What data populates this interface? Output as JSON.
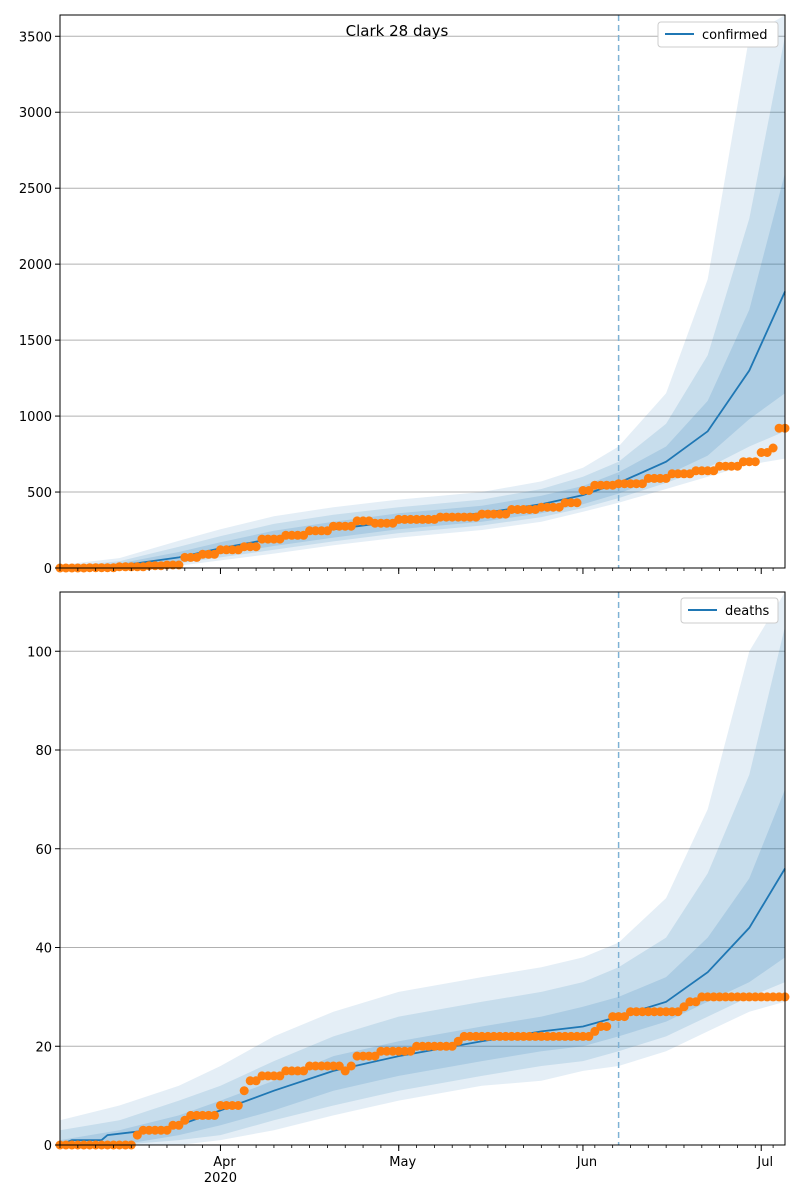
{
  "figure_title": "Clark 28 days",
  "colors": {
    "model": "#1f77b4",
    "observed": "#ff7f0e",
    "band": "#1f77b4",
    "grid": "#b0b0b0",
    "forecast_line": "#7fb2d5"
  },
  "x_axis": {
    "start_date": "2020-03-05",
    "end_date": "2020-07-05",
    "ticks": [
      {
        "date": "2020-04-01",
        "label": "Apr",
        "sublabel": "2020"
      },
      {
        "date": "2020-05-01",
        "label": "May",
        "sublabel": ""
      },
      {
        "date": "2020-06-01",
        "label": "Jun",
        "sublabel": ""
      },
      {
        "date": "2020-07-01",
        "label": "Jul",
        "sublabel": ""
      }
    ],
    "forecast_start": "2020-06-07"
  },
  "chart_data": [
    {
      "type": "line",
      "legend": "confirmed",
      "legend_position": "top-right",
      "ylim": [
        0,
        3640
      ],
      "yticks": [
        0,
        500,
        1000,
        1500,
        2000,
        2500,
        3000,
        3500
      ],
      "grid": true,
      "median": [
        {
          "x": "2020-03-05",
          "y": 0
        },
        {
          "x": "2020-03-15",
          "y": 15
        },
        {
          "x": "2020-03-25",
          "y": 70
        },
        {
          "x": "2020-04-01",
          "y": 130
        },
        {
          "x": "2020-04-10",
          "y": 195
        },
        {
          "x": "2020-04-20",
          "y": 255
        },
        {
          "x": "2020-05-01",
          "y": 310
        },
        {
          "x": "2020-05-15",
          "y": 360
        },
        {
          "x": "2020-05-25",
          "y": 420
        },
        {
          "x": "2020-06-01",
          "y": 480
        },
        {
          "x": "2020-06-07",
          "y": 560
        },
        {
          "x": "2020-06-15",
          "y": 700
        },
        {
          "x": "2020-06-22",
          "y": 900
        },
        {
          "x": "2020-06-29",
          "y": 1300
        },
        {
          "x": "2020-07-05",
          "y": 1820
        }
      ],
      "bands": [
        {
          "name": "inner",
          "points": [
            {
              "x": "2020-03-05",
              "lo": 0,
              "hi": 5
            },
            {
              "x": "2020-03-15",
              "lo": 8,
              "hi": 30
            },
            {
              "x": "2020-03-25",
              "lo": 45,
              "hi": 105
            },
            {
              "x": "2020-04-01",
              "lo": 90,
              "hi": 170
            },
            {
              "x": "2020-04-10",
              "lo": 145,
              "hi": 245
            },
            {
              "x": "2020-04-20",
              "lo": 200,
              "hi": 305
            },
            {
              "x": "2020-05-01",
              "lo": 255,
              "hi": 360
            },
            {
              "x": "2020-05-15",
              "lo": 305,
              "hi": 410
            },
            {
              "x": "2020-05-25",
              "lo": 360,
              "hi": 475
            },
            {
              "x": "2020-06-01",
              "lo": 420,
              "hi": 540
            },
            {
              "x": "2020-06-07",
              "lo": 490,
              "hi": 630
            },
            {
              "x": "2020-06-15",
              "lo": 610,
              "hi": 800
            },
            {
              "x": "2020-06-22",
              "lo": 740,
              "hi": 1100
            },
            {
              "x": "2020-06-29",
              "lo": 980,
              "hi": 1700
            },
            {
              "x": "2020-07-05",
              "lo": 1150,
              "hi": 2600
            }
          ]
        },
        {
          "name": "middle",
          "points": [
            {
              "x": "2020-03-05",
              "lo": 0,
              "hi": 10
            },
            {
              "x": "2020-03-15",
              "lo": 4,
              "hi": 45
            },
            {
              "x": "2020-03-25",
              "lo": 30,
              "hi": 140
            },
            {
              "x": "2020-04-01",
              "lo": 70,
              "hi": 210
            },
            {
              "x": "2020-04-10",
              "lo": 120,
              "hi": 290
            },
            {
              "x": "2020-04-20",
              "lo": 175,
              "hi": 350
            },
            {
              "x": "2020-05-01",
              "lo": 230,
              "hi": 400
            },
            {
              "x": "2020-05-15",
              "lo": 280,
              "hi": 450
            },
            {
              "x": "2020-05-25",
              "lo": 335,
              "hi": 520
            },
            {
              "x": "2020-06-01",
              "lo": 395,
              "hi": 600
            },
            {
              "x": "2020-06-07",
              "lo": 460,
              "hi": 700
            },
            {
              "x": "2020-06-15",
              "lo": 560,
              "hi": 950
            },
            {
              "x": "2020-06-22",
              "lo": 660,
              "hi": 1400
            },
            {
              "x": "2020-06-29",
              "lo": 800,
              "hi": 2300
            },
            {
              "x": "2020-07-05",
              "lo": 900,
              "hi": 3500
            }
          ]
        },
        {
          "name": "outer",
          "points": [
            {
              "x": "2020-03-05",
              "lo": 0,
              "hi": 20
            },
            {
              "x": "2020-03-15",
              "lo": 0,
              "hi": 65
            },
            {
              "x": "2020-03-25",
              "lo": 15,
              "hi": 180
            },
            {
              "x": "2020-04-01",
              "lo": 50,
              "hi": 255
            },
            {
              "x": "2020-04-10",
              "lo": 95,
              "hi": 340
            },
            {
              "x": "2020-04-20",
              "lo": 150,
              "hi": 400
            },
            {
              "x": "2020-05-01",
              "lo": 200,
              "hi": 450
            },
            {
              "x": "2020-05-15",
              "lo": 250,
              "hi": 500
            },
            {
              "x": "2020-05-25",
              "lo": 305,
              "hi": 570
            },
            {
              "x": "2020-06-01",
              "lo": 370,
              "hi": 660
            },
            {
              "x": "2020-06-07",
              "lo": 430,
              "hi": 800
            },
            {
              "x": "2020-06-15",
              "lo": 520,
              "hi": 1150
            },
            {
              "x": "2020-06-22",
              "lo": 600,
              "hi": 1900
            },
            {
              "x": "2020-06-29",
              "lo": 680,
              "hi": 3500
            },
            {
              "x": "2020-07-05",
              "lo": 720,
              "hi": 3640
            }
          ]
        }
      ],
      "observed": [
        {
          "x": "2020-03-05",
          "y": 0
        },
        {
          "x": "2020-03-10",
          "y": 2
        },
        {
          "x": "2020-03-15",
          "y": 8
        },
        {
          "x": "2020-03-20",
          "y": 15
        },
        {
          "x": "2020-03-23",
          "y": 20
        },
        {
          "x": "2020-03-26",
          "y": 70
        },
        {
          "x": "2020-03-29",
          "y": 90
        },
        {
          "x": "2020-04-01",
          "y": 120
        },
        {
          "x": "2020-04-05",
          "y": 140
        },
        {
          "x": "2020-04-08",
          "y": 190
        },
        {
          "x": "2020-04-12",
          "y": 215
        },
        {
          "x": "2020-04-16",
          "y": 245
        },
        {
          "x": "2020-04-20",
          "y": 275
        },
        {
          "x": "2020-04-24",
          "y": 310
        },
        {
          "x": "2020-04-27",
          "y": 295
        },
        {
          "x": "2020-05-01",
          "y": 320
        },
        {
          "x": "2020-05-08",
          "y": 335
        },
        {
          "x": "2020-05-15",
          "y": 355
        },
        {
          "x": "2020-05-20",
          "y": 385
        },
        {
          "x": "2020-05-25",
          "y": 400
        },
        {
          "x": "2020-05-29",
          "y": 430
        },
        {
          "x": "2020-06-01",
          "y": 510
        },
        {
          "x": "2020-06-03",
          "y": 545
        },
        {
          "x": "2020-06-07",
          "y": 555
        },
        {
          "x": "2020-06-12",
          "y": 590
        },
        {
          "x": "2020-06-16",
          "y": 620
        },
        {
          "x": "2020-06-20",
          "y": 640
        },
        {
          "x": "2020-06-24",
          "y": 670
        },
        {
          "x": "2020-06-28",
          "y": 700
        },
        {
          "x": "2020-07-01",
          "y": 760
        },
        {
          "x": "2020-07-03",
          "y": 790
        },
        {
          "x": "2020-07-04",
          "y": 920
        },
        {
          "x": "2020-07-05",
          "y": 920
        }
      ]
    },
    {
      "type": "line",
      "legend": "deaths",
      "legend_position": "top-right",
      "ylim": [
        0,
        112
      ],
      "yticks": [
        0,
        20,
        40,
        60,
        80,
        100
      ],
      "grid": true,
      "median": [
        {
          "x": "2020-03-05",
          "y": 0
        },
        {
          "x": "2020-03-07",
          "y": 1
        },
        {
          "x": "2020-03-12",
          "y": 1
        },
        {
          "x": "2020-03-13",
          "y": 2
        },
        {
          "x": "2020-03-20",
          "y": 3
        },
        {
          "x": "2020-03-25",
          "y": 4
        },
        {
          "x": "2020-04-01",
          "y": 7
        },
        {
          "x": "2020-04-10",
          "y": 11
        },
        {
          "x": "2020-04-20",
          "y": 15
        },
        {
          "x": "2020-05-01",
          "y": 18
        },
        {
          "x": "2020-05-15",
          "y": 21
        },
        {
          "x": "2020-05-25",
          "y": 23
        },
        {
          "x": "2020-06-01",
          "y": 24
        },
        {
          "x": "2020-06-07",
          "y": 26
        },
        {
          "x": "2020-06-15",
          "y": 29
        },
        {
          "x": "2020-06-22",
          "y": 35
        },
        {
          "x": "2020-06-29",
          "y": 44
        },
        {
          "x": "2020-07-05",
          "y": 56
        }
      ],
      "bands": [
        {
          "name": "inner",
          "points": [
            {
              "x": "2020-03-05",
              "lo": 0,
              "hi": 1
            },
            {
              "x": "2020-03-15",
              "lo": 0,
              "hi": 3
            },
            {
              "x": "2020-03-25",
              "lo": 2,
              "hi": 6
            },
            {
              "x": "2020-04-01",
              "lo": 4,
              "hi": 9
            },
            {
              "x": "2020-04-10",
              "lo": 7,
              "hi": 13
            },
            {
              "x": "2020-04-20",
              "lo": 11,
              "hi": 18
            },
            {
              "x": "2020-05-01",
              "lo": 14,
              "hi": 21
            },
            {
              "x": "2020-05-15",
              "lo": 17,
              "hi": 24
            },
            {
              "x": "2020-05-25",
              "lo": 19,
              "hi": 26
            },
            {
              "x": "2020-06-01",
              "lo": 20,
              "hi": 28
            },
            {
              "x": "2020-06-07",
              "lo": 22,
              "hi": 30
            },
            {
              "x": "2020-06-15",
              "lo": 25,
              "hi": 34
            },
            {
              "x": "2020-06-22",
              "lo": 29,
              "hi": 42
            },
            {
              "x": "2020-06-29",
              "lo": 33,
              "hi": 54
            },
            {
              "x": "2020-07-05",
              "lo": 38,
              "hi": 72
            }
          ]
        },
        {
          "name": "middle",
          "points": [
            {
              "x": "2020-03-05",
              "lo": 0,
              "hi": 3
            },
            {
              "x": "2020-03-15",
              "lo": 0,
              "hi": 5
            },
            {
              "x": "2020-03-25",
              "lo": 1,
              "hi": 9
            },
            {
              "x": "2020-04-01",
              "lo": 2,
              "hi": 12
            },
            {
              "x": "2020-04-10",
              "lo": 5,
              "hi": 17
            },
            {
              "x": "2020-04-20",
              "lo": 8,
              "hi": 22
            },
            {
              "x": "2020-05-01",
              "lo": 11,
              "hi": 26
            },
            {
              "x": "2020-05-15",
              "lo": 14,
              "hi": 29
            },
            {
              "x": "2020-05-25",
              "lo": 16,
              "hi": 31
            },
            {
              "x": "2020-06-01",
              "lo": 17,
              "hi": 33
            },
            {
              "x": "2020-06-07",
              "lo": 19,
              "hi": 36
            },
            {
              "x": "2020-06-15",
              "lo": 22,
              "hi": 42
            },
            {
              "x": "2020-06-22",
              "lo": 26,
              "hi": 55
            },
            {
              "x": "2020-06-29",
              "lo": 30,
              "hi": 75
            },
            {
              "x": "2020-07-05",
              "lo": 33,
              "hi": 105
            }
          ]
        },
        {
          "name": "outer",
          "points": [
            {
              "x": "2020-03-05",
              "lo": 0,
              "hi": 5
            },
            {
              "x": "2020-03-15",
              "lo": 0,
              "hi": 8
            },
            {
              "x": "2020-03-25",
              "lo": 0,
              "hi": 12
            },
            {
              "x": "2020-04-01",
              "lo": 1,
              "hi": 16
            },
            {
              "x": "2020-04-10",
              "lo": 3,
              "hi": 22
            },
            {
              "x": "2020-04-20",
              "lo": 6,
              "hi": 27
            },
            {
              "x": "2020-05-01",
              "lo": 9,
              "hi": 31
            },
            {
              "x": "2020-05-15",
              "lo": 12,
              "hi": 34
            },
            {
              "x": "2020-05-25",
              "lo": 13,
              "hi": 36
            },
            {
              "x": "2020-06-01",
              "lo": 15,
              "hi": 38
            },
            {
              "x": "2020-06-07",
              "lo": 16,
              "hi": 41
            },
            {
              "x": "2020-06-15",
              "lo": 19,
              "hi": 50
            },
            {
              "x": "2020-06-22",
              "lo": 23,
              "hi": 68
            },
            {
              "x": "2020-06-29",
              "lo": 27,
              "hi": 100
            },
            {
              "x": "2020-07-05",
              "lo": 29,
              "hi": 112
            }
          ]
        }
      ],
      "observed": [
        {
          "x": "2020-03-05",
          "y": 0
        },
        {
          "x": "2020-03-17",
          "y": 0
        },
        {
          "x": "2020-03-18",
          "y": 2
        },
        {
          "x": "2020-03-19",
          "y": 3
        },
        {
          "x": "2020-03-24",
          "y": 4
        },
        {
          "x": "2020-03-26",
          "y": 5
        },
        {
          "x": "2020-03-27",
          "y": 6
        },
        {
          "x": "2020-04-01",
          "y": 8
        },
        {
          "x": "2020-04-05",
          "y": 11
        },
        {
          "x": "2020-04-06",
          "y": 13
        },
        {
          "x": "2020-04-08",
          "y": 14
        },
        {
          "x": "2020-04-12",
          "y": 15
        },
        {
          "x": "2020-04-16",
          "y": 16
        },
        {
          "x": "2020-04-22",
          "y": 15
        },
        {
          "x": "2020-04-23",
          "y": 16
        },
        {
          "x": "2020-04-24",
          "y": 18
        },
        {
          "x": "2020-04-28",
          "y": 19
        },
        {
          "x": "2020-05-04",
          "y": 20
        },
        {
          "x": "2020-05-11",
          "y": 21
        },
        {
          "x": "2020-05-12",
          "y": 22
        },
        {
          "x": "2020-06-02",
          "y": 22
        },
        {
          "x": "2020-06-03",
          "y": 23
        },
        {
          "x": "2020-06-04",
          "y": 24
        },
        {
          "x": "2020-06-06",
          "y": 26
        },
        {
          "x": "2020-06-08",
          "y": 26
        },
        {
          "x": "2020-06-09",
          "y": 27
        },
        {
          "x": "2020-06-17",
          "y": 27
        },
        {
          "x": "2020-06-18",
          "y": 28
        },
        {
          "x": "2020-06-19",
          "y": 29
        },
        {
          "x": "2020-06-21",
          "y": 30
        },
        {
          "x": "2020-07-05",
          "y": 30
        }
      ]
    }
  ]
}
